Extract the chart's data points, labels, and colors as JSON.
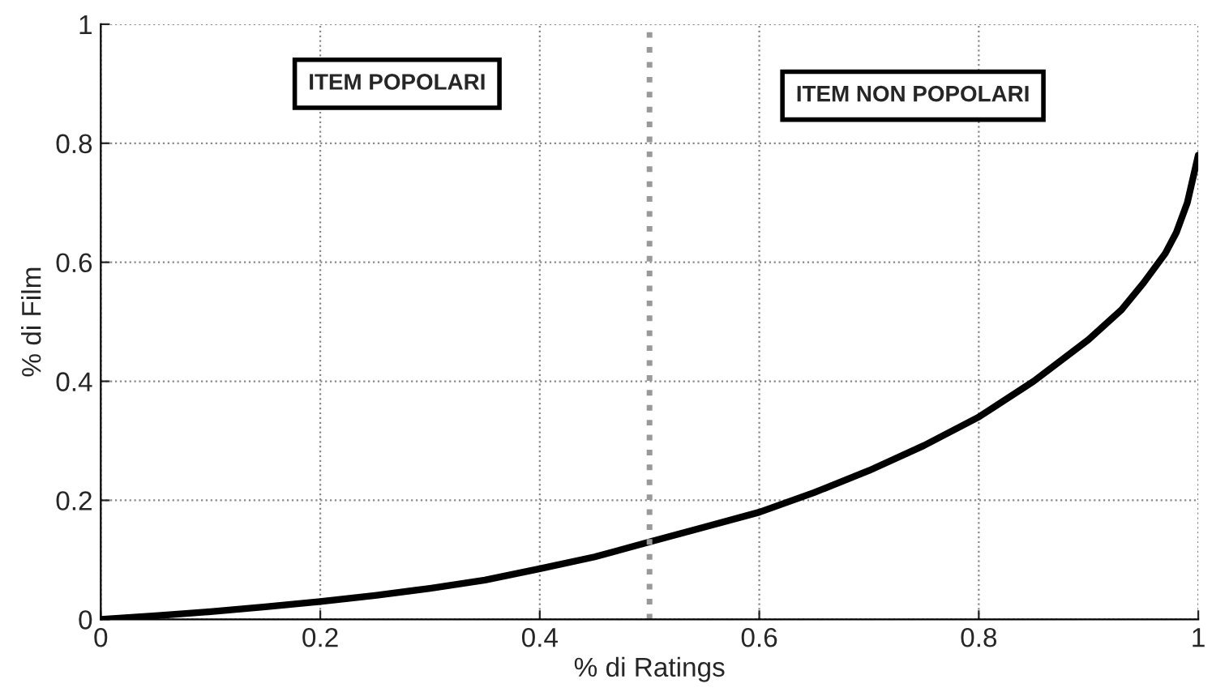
{
  "chart_data": {
    "type": "line",
    "xlabel": "% di Ratings",
    "ylabel": "% di Film",
    "x": [
      0,
      0.05,
      0.1,
      0.15,
      0.2,
      0.25,
      0.3,
      0.35,
      0.4,
      0.45,
      0.5,
      0.55,
      0.6,
      0.65,
      0.7,
      0.75,
      0.8,
      0.85,
      0.9,
      0.93,
      0.95,
      0.97,
      0.98,
      0.99,
      0.995,
      1.0
    ],
    "series": [
      {
        "color": "#000000",
        "values": [
          0,
          0.006,
          0.013,
          0.021,
          0.03,
          0.04,
          0.052,
          0.066,
          0.085,
          0.105,
          0.13,
          0.155,
          0.18,
          0.213,
          0.25,
          0.292,
          0.34,
          0.4,
          0.47,
          0.52,
          0.565,
          0.615,
          0.65,
          0.7,
          0.74,
          0.78
        ]
      }
    ],
    "xlim": [
      0,
      1
    ],
    "ylim": [
      0,
      1
    ],
    "xticks": [
      0,
      0.2,
      0.4,
      0.6,
      0.8,
      1
    ],
    "yticks": [
      0,
      0.2,
      0.4,
      0.6,
      0.8,
      1
    ],
    "grid": true,
    "line_style": "solid",
    "marker": "none",
    "ref_lines": [
      {
        "axis": "x",
        "value": 0.5,
        "color": "#999999",
        "line_style": "dotted"
      }
    ],
    "annotations": [
      "ITEM POPOLARI",
      "ITEM NON POPOLARI"
    ]
  }
}
